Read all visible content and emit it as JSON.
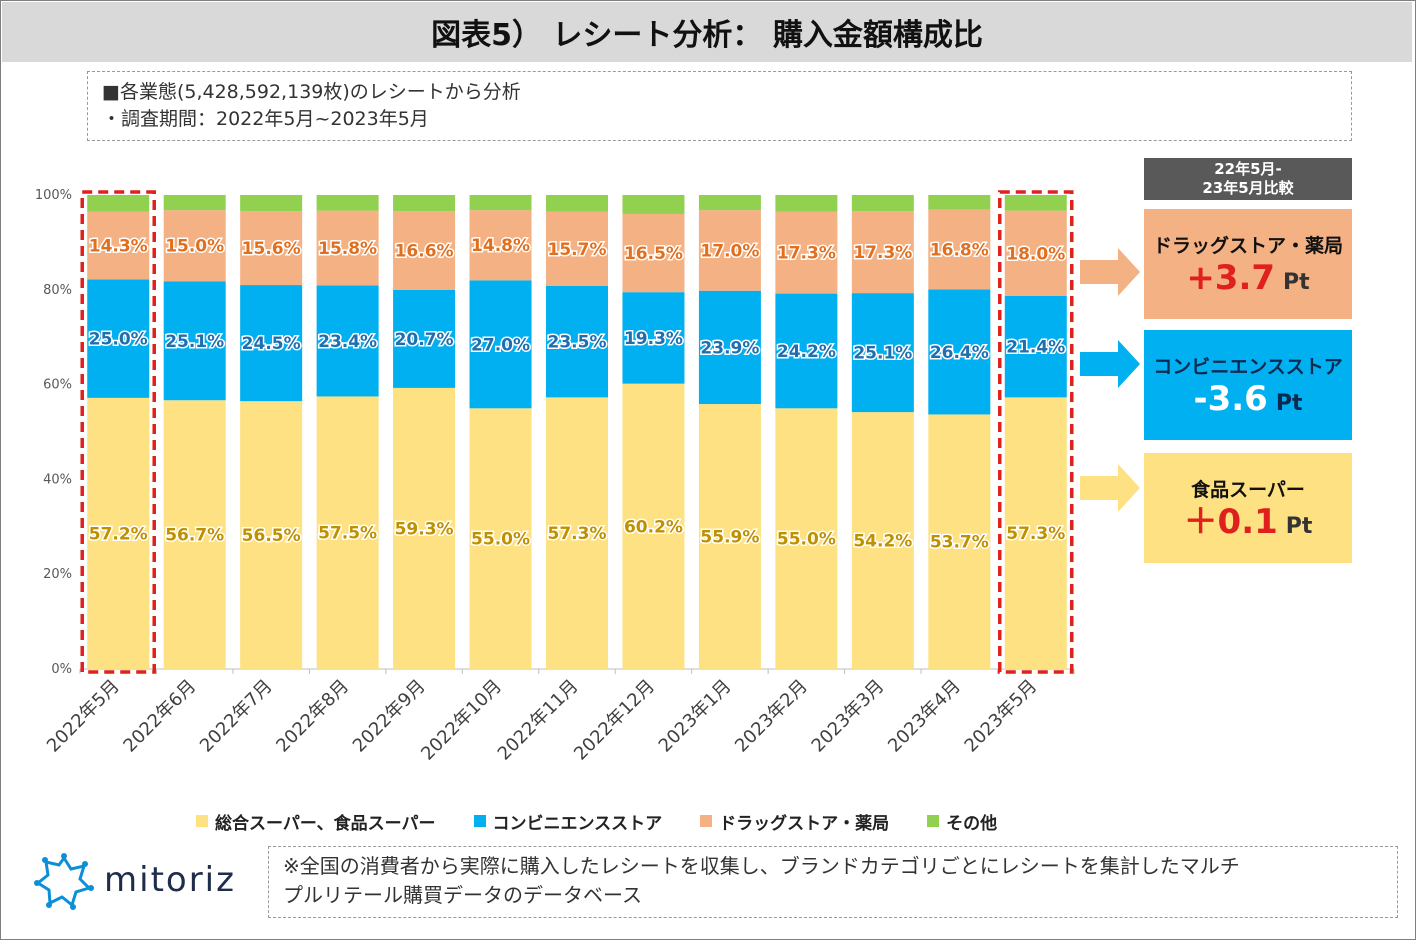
{
  "title": "図表5） レシート分析： 購入金額構成比",
  "info": {
    "line1": "■各業態(5,428,592,139枚)のレシートから分析",
    "line2": "・調査期間：2022年5月~2023年5月"
  },
  "colors": {
    "super": "#fde183",
    "cvs": "#00b0f0",
    "drug": "#f4b183",
    "other": "#92d050",
    "highlight": "#e0201c",
    "up": "#e0201c",
    "down": "#00a0e0",
    "super_label": "#bf9000",
    "cvs_label": "#1f6fb0",
    "drug_label": "#e07020"
  },
  "chart_data": {
    "type": "bar",
    "stacked": true,
    "title": "レシート分析： 購入金額構成比",
    "categories": [
      "2022年5月",
      "2022年6月",
      "2022年7月",
      "2022年8月",
      "2022年9月",
      "2022年10月",
      "2022年11月",
      "2022年12月",
      "2023年1月",
      "2023年2月",
      "2023年3月",
      "2023年4月",
      "2023年5月"
    ],
    "series": [
      {
        "name": "総合スーパー、食品スーパー",
        "key": "super",
        "values": [
          57.2,
          56.7,
          56.5,
          57.5,
          59.3,
          55.0,
          57.3,
          60.2,
          55.9,
          55.0,
          54.2,
          53.7,
          57.3
        ]
      },
      {
        "name": "コンビニエンスストア",
        "key": "cvs",
        "values": [
          25.0,
          25.1,
          24.5,
          23.4,
          20.7,
          27.0,
          23.5,
          19.3,
          23.9,
          24.2,
          25.1,
          26.4,
          21.4
        ]
      },
      {
        "name": "ドラッグストア・薬局",
        "key": "drug",
        "values": [
          14.3,
          15.0,
          15.6,
          15.8,
          16.6,
          14.8,
          15.7,
          16.5,
          17.0,
          17.3,
          17.3,
          16.8,
          18.0
        ]
      },
      {
        "name": "その他",
        "key": "other",
        "values": [
          3.5,
          3.2,
          3.4,
          3.3,
          3.4,
          3.2,
          3.5,
          4.0,
          3.2,
          3.5,
          3.4,
          3.1,
          3.3
        ]
      }
    ],
    "labels": {
      "super": [
        "57.2%",
        "56.7%",
        "56.5%",
        "57.5%",
        "59.3%",
        "55.0%",
        "57.3%",
        "60.2%",
        "55.9%",
        "55.0%",
        "54.2%",
        "53.7%",
        "57.3%"
      ],
      "cvs": [
        "25.0%",
        "25.1%",
        "24.5%",
        "23.4%",
        "20.7%",
        "27.0%",
        "23.5%",
        "19.3%",
        "23.9%",
        "24.2%",
        "25.1%",
        "26.4%",
        "21.4%"
      ],
      "drug": [
        "14.3%",
        "15.0%",
        "15.6%",
        "15.8%",
        "16.6%",
        "14.8%",
        "15.7%",
        "16.5%",
        "17.0%",
        "17.3%",
        "17.3%",
        "16.8%",
        "18.0%"
      ]
    },
    "yticks": [
      "0%",
      "20%",
      "40%",
      "60%",
      "80%",
      "100%"
    ],
    "ylim": [
      0,
      100
    ],
    "highlighted": [
      0,
      12
    ],
    "legend_position": "bottom"
  },
  "legend": [
    {
      "label": "総合スーパー、食品スーパー",
      "key": "super"
    },
    {
      "label": "コンビニエンスストア",
      "key": "cvs"
    },
    {
      "label": "ドラッグストア・薬局",
      "key": "drug"
    },
    {
      "label": "その他",
      "key": "other"
    }
  ],
  "comparison": {
    "header_line1": "22年5月-",
    "header_line2": "23年5月比較",
    "drug": {
      "name": "ドラッグストア・薬局",
      "value": "+3.7",
      "unit": "Pt"
    },
    "cvs": {
      "name": "コンビニエンスストア",
      "value": "-3.6",
      "unit": "Pt"
    },
    "super": {
      "name": "食品スーパー",
      "value": "＋0.1",
      "unit": "Pt"
    }
  },
  "logo": {
    "text": "mitoriz"
  },
  "note": {
    "line1": "※全国の消費者から実際に購入したレシートを収集し、ブランドカテゴリごとにレシートを集計したマルチ",
    "line2": "プルリテール購買データのデータベース"
  }
}
